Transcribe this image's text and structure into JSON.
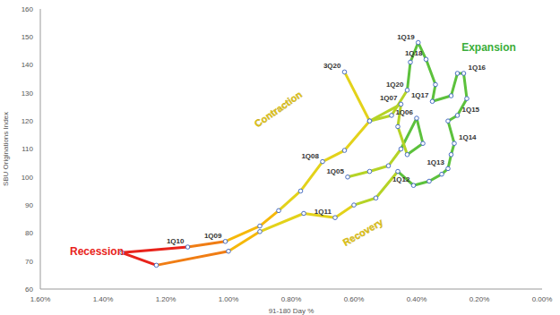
{
  "chart_data": {
    "type": "line",
    "x_label": "91-180 Day %",
    "y_label": "SBU Originations Index",
    "xlim": [
      1.6,
      0
    ],
    "ylim": [
      60,
      160
    ],
    "xticks": [
      {
        "value": 1.6,
        "label": "1.60%"
      },
      {
        "value": 1.4,
        "label": "1.40%"
      },
      {
        "value": 1.2,
        "label": "1.20%"
      },
      {
        "value": 1.0,
        "label": "1.00%"
      },
      {
        "value": 0.8,
        "label": "0.80%"
      },
      {
        "value": 0.6,
        "label": "0.60%"
      },
      {
        "value": 0.4,
        "label": "0.40%"
      },
      {
        "value": 0.2,
        "label": "0.20%"
      },
      {
        "value": 0,
        "label": "0.00%"
      }
    ],
    "yticks": [
      60,
      70,
      80,
      90,
      100,
      110,
      120,
      130,
      140,
      150,
      160
    ],
    "grid": false,
    "marker": "circle",
    "x": [
      0.62,
      0.55,
      0.49,
      0.45,
      0.4,
      0.38,
      0.43,
      0.46,
      0.45,
      0.55,
      0.63,
      0.7,
      0.77,
      0.84,
      0.9,
      1.01,
      1.13,
      1.34,
      1.23,
      1.0,
      0.9,
      0.76,
      0.66,
      0.6,
      0.53,
      0.46,
      0.41,
      0.36,
      0.32,
      0.3,
      0.29,
      0.28,
      0.3,
      0.27,
      0.24,
      0.25,
      0.27,
      0.29,
      0.35,
      0.34,
      0.37,
      0.395,
      0.42,
      0.43,
      0.48,
      0.55,
      0.63
    ],
    "values": [
      100,
      102,
      104,
      110,
      121,
      112,
      108,
      118,
      126,
      120,
      109.5,
      105.5,
      95,
      88,
      82.5,
      77,
      75,
      73,
      68.5,
      73.5,
      80.5,
      87,
      85.5,
      90,
      92.5,
      102,
      97,
      98.5,
      101,
      103,
      108,
      112,
      120,
      122,
      128,
      137,
      137,
      129,
      127,
      133,
      142,
      148,
      141,
      131,
      122,
      120,
      137.5
    ],
    "labels": [
      "1Q05",
      null,
      null,
      null,
      "1Q06",
      null,
      null,
      null,
      "1Q07",
      null,
      null,
      "1Q08",
      null,
      null,
      null,
      "1Q09",
      "1Q10",
      null,
      null,
      null,
      null,
      null,
      "1Q11",
      null,
      null,
      null,
      "1Q12",
      null,
      null,
      "1Q13",
      null,
      "1Q14",
      null,
      "1Q15",
      null,
      "1Q16",
      null,
      null,
      "1Q17",
      null,
      "1Q18",
      "1Q19",
      null,
      "1Q20",
      null,
      null,
      "3Q20"
    ],
    "colors": [
      "#e3d21a",
      "#b5d326",
      "#b5d326",
      "#b5d326",
      "#5cc13c",
      "#5cc13c",
      "#5cc13c",
      "#b5d326",
      "#b5d326",
      "#b5d326",
      "#e3d21a",
      "#e3d21a",
      "#e3d21a",
      "#e3d21a",
      "#f5b80a",
      "#f5b80a",
      "#f07d14",
      "#e8231b",
      "#e8231b",
      "#f07d14",
      "#f5b80a",
      "#e3d21a",
      "#e3d21a",
      "#e3d21a",
      "#b5d326",
      "#b5d326",
      "#5cc13c",
      "#5cc13c",
      "#5cc13c",
      "#5cc13c",
      "#5cc13c",
      "#5cc13c",
      "#5cc13c",
      "#5cc13c",
      "#5cc13c",
      "#5cc13c",
      "#5cc13c",
      "#5cc13c",
      "#5cc13c",
      "#5cc13c",
      "#5cc13c",
      "#5cc13c",
      "#5cc13c",
      "#5cc13c",
      "#b5d326",
      "#b5d326",
      "#e3d21a"
    ],
    "annotations": [
      {
        "text": "Recession",
        "x": 1.42,
        "y": 73,
        "color": "#e8231b"
      },
      {
        "text": "Contraction",
        "x": 0.84,
        "y": 124,
        "color": "#e3c81a"
      },
      {
        "text": "Expansion",
        "x": 0.17,
        "y": 146,
        "color": "#3aad3a"
      },
      {
        "text": "Recovery",
        "x": 0.57,
        "y": 80,
        "color": "#e3c81a"
      }
    ]
  }
}
